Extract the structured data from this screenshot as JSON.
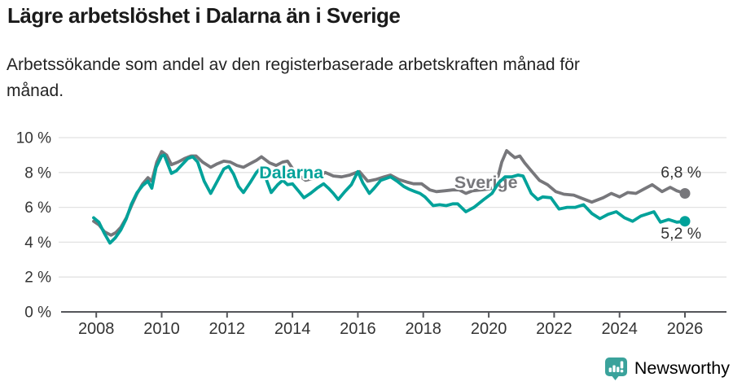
{
  "header": {
    "title": "Lägre arbetslöshet i Dalarna än i Sverige",
    "subtitle_line1": "Arbetssökande som andel av den registerbaserade arbetskraften månad för",
    "subtitle_line2": "månad."
  },
  "branding": {
    "logo_text": "Newsworthy",
    "logo_color": "#3aa29b"
  },
  "chart_data": {
    "type": "line",
    "title": "Lägre arbetslöshet i Dalarna än i Sverige",
    "subtitle": "Arbetssökande som andel av den registerbaserade arbetskraften månad för månad.",
    "x_unit": "year",
    "y_unit": "%",
    "xlim": [
      2006.85,
      2027.27
    ],
    "ylim": [
      0,
      10
    ],
    "x_ticks": [
      2008,
      2010,
      2012,
      2014,
      2016,
      2018,
      2020,
      2022,
      2024,
      2026
    ],
    "y_ticks": [
      0,
      2,
      4,
      6,
      8,
      10
    ],
    "y_tick_suffix": " %",
    "grid": "horizontal",
    "legend": "inline-labels",
    "axis_color": "#55565a",
    "grid_color": "#e2e2e2",
    "tick_label_color": "#333333",
    "annotation_color": "#333333",
    "series": [
      {
        "name": "Sverige",
        "color": "#77777b",
        "label_pos": [
          2018.95,
          7.1
        ],
        "label_anchor": "start",
        "end_label": "6,8 %",
        "end_label_pos": [
          2026.5,
          7.71
        ],
        "end_label_anchor": "end",
        "points": [
          [
            2007.92,
            5.2
          ],
          [
            2008.08,
            5.0
          ],
          [
            2008.25,
            4.6
          ],
          [
            2008.45,
            4.4
          ],
          [
            2008.6,
            4.55
          ],
          [
            2008.75,
            4.85
          ],
          [
            2008.92,
            5.4
          ],
          [
            2009.08,
            6.1
          ],
          [
            2009.25,
            6.8
          ],
          [
            2009.42,
            7.35
          ],
          [
            2009.58,
            7.7
          ],
          [
            2009.7,
            7.5
          ],
          [
            2009.85,
            8.6
          ],
          [
            2010.0,
            9.2
          ],
          [
            2010.15,
            9.0
          ],
          [
            2010.3,
            8.45
          ],
          [
            2010.5,
            8.6
          ],
          [
            2010.7,
            8.8
          ],
          [
            2010.9,
            8.95
          ],
          [
            2011.05,
            8.95
          ],
          [
            2011.25,
            8.6
          ],
          [
            2011.5,
            8.3
          ],
          [
            2011.7,
            8.5
          ],
          [
            2011.9,
            8.65
          ],
          [
            2012.1,
            8.6
          ],
          [
            2012.3,
            8.4
          ],
          [
            2012.5,
            8.3
          ],
          [
            2012.7,
            8.5
          ],
          [
            2012.9,
            8.7
          ],
          [
            2013.05,
            8.9
          ],
          [
            2013.3,
            8.55
          ],
          [
            2013.5,
            8.4
          ],
          [
            2013.7,
            8.6
          ],
          [
            2013.85,
            8.65
          ],
          [
            2014.05,
            8.1
          ],
          [
            2014.25,
            7.75
          ],
          [
            2014.4,
            7.55
          ],
          [
            2014.6,
            7.65
          ],
          [
            2014.8,
            7.75
          ],
          [
            2015.0,
            8.0
          ],
          [
            2015.25,
            7.8
          ],
          [
            2015.5,
            7.75
          ],
          [
            2015.75,
            7.85
          ],
          [
            2015.95,
            8.0
          ],
          [
            2016.05,
            8.05
          ],
          [
            2016.3,
            7.5
          ],
          [
            2016.55,
            7.6
          ],
          [
            2016.8,
            7.75
          ],
          [
            2017.0,
            7.85
          ],
          [
            2017.25,
            7.6
          ],
          [
            2017.5,
            7.45
          ],
          [
            2017.7,
            7.35
          ],
          [
            2017.95,
            7.35
          ],
          [
            2018.2,
            7.0
          ],
          [
            2018.4,
            6.9
          ],
          [
            2018.65,
            6.95
          ],
          [
            2018.9,
            7.0
          ],
          [
            2019.1,
            7.0
          ],
          [
            2019.3,
            6.8
          ],
          [
            2019.5,
            6.95
          ],
          [
            2019.75,
            7.0
          ],
          [
            2020.0,
            7.05
          ],
          [
            2020.2,
            7.15
          ],
          [
            2020.4,
            8.6
          ],
          [
            2020.55,
            9.25
          ],
          [
            2020.7,
            9.0
          ],
          [
            2020.8,
            8.85
          ],
          [
            2020.95,
            8.95
          ],
          [
            2021.1,
            8.55
          ],
          [
            2021.3,
            8.1
          ],
          [
            2021.55,
            7.55
          ],
          [
            2021.8,
            7.3
          ],
          [
            2022.05,
            6.9
          ],
          [
            2022.3,
            6.75
          ],
          [
            2022.6,
            6.7
          ],
          [
            2022.8,
            6.55
          ],
          [
            2023.15,
            6.3
          ],
          [
            2023.5,
            6.55
          ],
          [
            2023.75,
            6.8
          ],
          [
            2024.0,
            6.6
          ],
          [
            2024.25,
            6.85
          ],
          [
            2024.5,
            6.8
          ],
          [
            2024.75,
            7.05
          ],
          [
            2025.0,
            7.3
          ],
          [
            2025.3,
            6.9
          ],
          [
            2025.55,
            7.15
          ],
          [
            2025.75,
            6.95
          ],
          [
            2026.0,
            6.8
          ]
        ]
      },
      {
        "name": "Dalarna",
        "color": "#00a29a",
        "label_pos": [
          2012.98,
          7.66
        ],
        "label_anchor": "start",
        "end_label": "5,2 %",
        "end_label_pos": [
          2026.5,
          4.21
        ],
        "end_label_anchor": "end",
        "points": [
          [
            2007.92,
            5.4
          ],
          [
            2008.08,
            5.15
          ],
          [
            2008.25,
            4.5
          ],
          [
            2008.42,
            3.95
          ],
          [
            2008.58,
            4.25
          ],
          [
            2008.75,
            4.7
          ],
          [
            2008.92,
            5.35
          ],
          [
            2009.08,
            6.2
          ],
          [
            2009.25,
            6.85
          ],
          [
            2009.42,
            7.25
          ],
          [
            2009.58,
            7.5
          ],
          [
            2009.7,
            7.1
          ],
          [
            2009.83,
            8.3
          ],
          [
            2010.0,
            8.95
          ],
          [
            2010.08,
            9.0
          ],
          [
            2010.3,
            7.95
          ],
          [
            2010.45,
            8.1
          ],
          [
            2010.6,
            8.4
          ],
          [
            2010.8,
            8.8
          ],
          [
            2010.95,
            8.9
          ],
          [
            2011.1,
            8.6
          ],
          [
            2011.3,
            7.5
          ],
          [
            2011.5,
            6.8
          ],
          [
            2011.7,
            7.5
          ],
          [
            2011.9,
            8.2
          ],
          [
            2012.05,
            8.35
          ],
          [
            2012.2,
            7.9
          ],
          [
            2012.35,
            7.2
          ],
          [
            2012.5,
            6.85
          ],
          [
            2012.7,
            7.4
          ],
          [
            2012.9,
            8.0
          ],
          [
            2013.05,
            8.3
          ],
          [
            2013.2,
            7.6
          ],
          [
            2013.35,
            6.85
          ],
          [
            2013.55,
            7.3
          ],
          [
            2013.7,
            7.55
          ],
          [
            2013.85,
            7.3
          ],
          [
            2014.0,
            7.35
          ],
          [
            2014.2,
            6.9
          ],
          [
            2014.35,
            6.55
          ],
          [
            2014.55,
            6.8
          ],
          [
            2014.75,
            7.1
          ],
          [
            2014.95,
            7.35
          ],
          [
            2015.1,
            7.1
          ],
          [
            2015.25,
            6.8
          ],
          [
            2015.4,
            6.45
          ],
          [
            2015.6,
            6.9
          ],
          [
            2015.8,
            7.3
          ],
          [
            2016.0,
            8.05
          ],
          [
            2016.15,
            7.4
          ],
          [
            2016.35,
            6.8
          ],
          [
            2016.5,
            7.1
          ],
          [
            2016.7,
            7.55
          ],
          [
            2016.85,
            7.65
          ],
          [
            2017.0,
            7.75
          ],
          [
            2017.2,
            7.5
          ],
          [
            2017.4,
            7.2
          ],
          [
            2017.55,
            7.05
          ],
          [
            2017.75,
            6.9
          ],
          [
            2017.9,
            6.8
          ],
          [
            2018.05,
            6.6
          ],
          [
            2018.3,
            6.1
          ],
          [
            2018.5,
            6.15
          ],
          [
            2018.7,
            6.1
          ],
          [
            2018.9,
            6.2
          ],
          [
            2019.05,
            6.2
          ],
          [
            2019.3,
            5.75
          ],
          [
            2019.55,
            6.0
          ],
          [
            2019.85,
            6.45
          ],
          [
            2020.1,
            6.8
          ],
          [
            2020.3,
            7.4
          ],
          [
            2020.5,
            7.75
          ],
          [
            2020.7,
            7.75
          ],
          [
            2020.9,
            7.85
          ],
          [
            2021.05,
            7.8
          ],
          [
            2021.3,
            6.8
          ],
          [
            2021.5,
            6.45
          ],
          [
            2021.65,
            6.6
          ],
          [
            2021.9,
            6.55
          ],
          [
            2022.15,
            5.9
          ],
          [
            2022.4,
            6.0
          ],
          [
            2022.65,
            6.0
          ],
          [
            2022.9,
            6.15
          ],
          [
            2023.15,
            5.65
          ],
          [
            2023.4,
            5.35
          ],
          [
            2023.65,
            5.6
          ],
          [
            2023.9,
            5.75
          ],
          [
            2024.15,
            5.4
          ],
          [
            2024.4,
            5.2
          ],
          [
            2024.65,
            5.5
          ],
          [
            2024.9,
            5.65
          ],
          [
            2025.05,
            5.75
          ],
          [
            2025.25,
            5.15
          ],
          [
            2025.5,
            5.3
          ],
          [
            2025.75,
            5.15
          ],
          [
            2026.0,
            5.2
          ]
        ]
      }
    ]
  }
}
